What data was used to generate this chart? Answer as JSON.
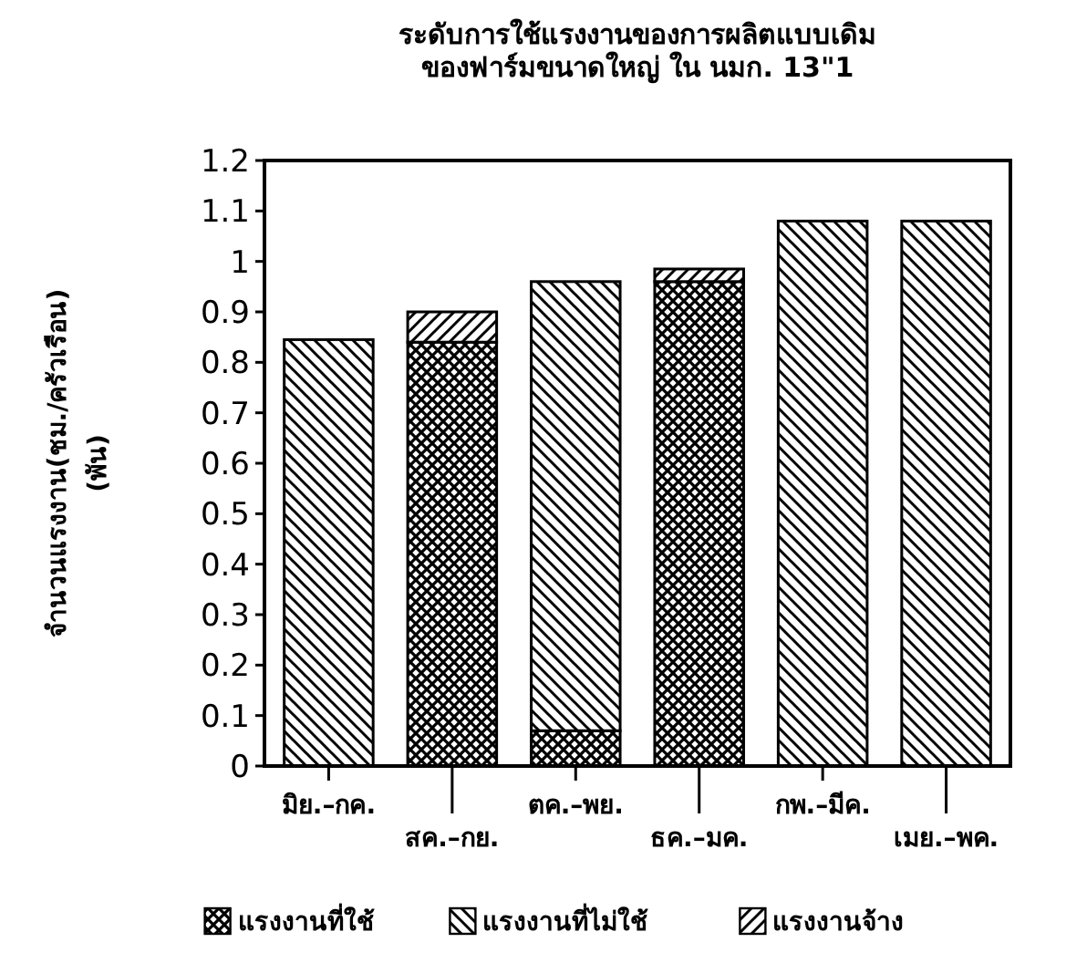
{
  "chart_data": {
    "type": "bar",
    "stacked": true,
    "title": "ระดับการใช้แรงงานของการผลิตแบบเดิม",
    "subtitle": "ของฟาร์มขนาดใหญ่ ใน นมก. 13\"1",
    "ylabel": "จำนวนแรงงาน(ชม./ครัวเรือน)",
    "y2label": "(พัน)",
    "categories": [
      "มิย.–กค.",
      "สค.–กย.",
      "ตค.–พย.",
      "ธค.–มค.",
      "กพ.–มีค.",
      "เมย.–พค."
    ],
    "series": [
      {
        "name": "แรงงานที่ใช้",
        "color": "#000000",
        "values": [
          0,
          0.84,
          0.07,
          0.96,
          0,
          0
        ]
      },
      {
        "name": "แรงงานที่ไม่ใช้",
        "color": "#000000",
        "values": [
          0.845,
          0,
          0.89,
          0,
          1.08,
          1.08
        ]
      },
      {
        "name": "แรงงานจ้าง",
        "color": "#000000",
        "values": [
          0,
          0.06,
          0,
          0.025,
          0,
          0
        ]
      }
    ],
    "ylim": [
      0,
      1.2
    ],
    "yticks": [
      0,
      0.1,
      0.2,
      0.3,
      0.4,
      0.5,
      0.6,
      0.7,
      0.8,
      0.9,
      1,
      1.1,
      1.2
    ],
    "legend": "bottom",
    "grid": false
  }
}
